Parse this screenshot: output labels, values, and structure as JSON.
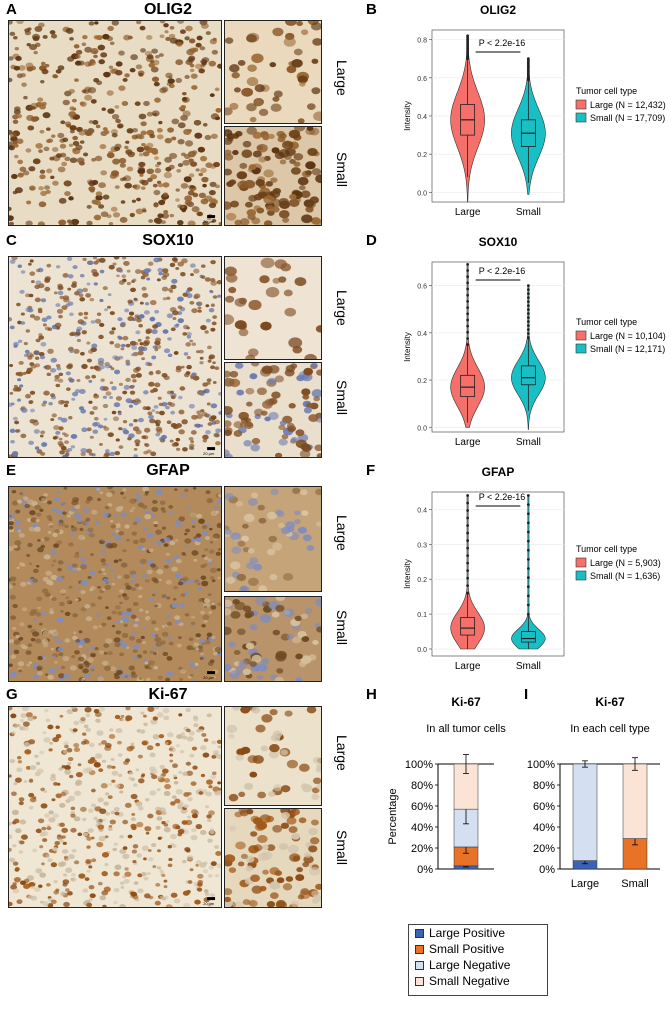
{
  "panel_letters": {
    "A": "A",
    "B": "B",
    "C": "C",
    "D": "D",
    "E": "E",
    "F": "F",
    "G": "G",
    "H": "H",
    "I": "I"
  },
  "micro_titles": {
    "olig2": "OLIG2",
    "sox10": "SOX10",
    "gfap": "GFAP",
    "ki67": "Ki-67"
  },
  "size_labels": {
    "large": "Large",
    "small": "Small"
  },
  "scale_bar": "20 μm",
  "colors": {
    "large": "#f5706a",
    "small": "#19bfc4",
    "large_pos": "#3a62b8",
    "small_pos": "#e87226",
    "large_neg": "#d4dff1",
    "small_neg": "#fbe3d6",
    "dab": "#6b3f17",
    "hema": "#7e8dbf"
  },
  "chart_data": [
    {
      "type": "violin",
      "title": "OLIG2",
      "ylabel": "Intensity",
      "categories": [
        "Large",
        "Small"
      ],
      "ylim": [
        -0.05,
        0.85
      ],
      "yticks": [
        "0.0",
        "0.2",
        "0.4",
        "0.6",
        "0.8"
      ],
      "ytick_values": [
        0,
        0.2,
        0.4,
        0.6,
        0.8
      ],
      "annotation": "P < 2.2e-16",
      "legend_title": "Tumor cell type",
      "legend": [
        "Large (N = 12,432)",
        "Small (N = 17,709)"
      ],
      "box": [
        {
          "q1": 0.3,
          "median": 0.38,
          "q3": 0.46,
          "wlo": 0.08,
          "whi": 0.7,
          "min": -0.05,
          "max": 0.82
        },
        {
          "q1": 0.24,
          "median": 0.31,
          "q3": 0.38,
          "wlo": 0.05,
          "whi": 0.59,
          "min": -0.01,
          "max": 0.7
        }
      ]
    },
    {
      "type": "violin",
      "title": "SOX10",
      "ylabel": "Intensity",
      "categories": [
        "Large",
        "Small"
      ],
      "ylim": [
        -0.02,
        0.7
      ],
      "yticks": [
        "0.0",
        "0.2",
        "0.4",
        "0.6"
      ],
      "ytick_values": [
        0,
        0.2,
        0.4,
        0.6
      ],
      "annotation": "P < 2.2e-16",
      "legend_title": "Tumor cell type",
      "legend": [
        "Large (N = 10,104)",
        "Small (N = 12,171)"
      ],
      "box": [
        {
          "q1": 0.13,
          "median": 0.17,
          "q3": 0.22,
          "wlo": 0.02,
          "whi": 0.35,
          "min": 0.0,
          "max": 0.69
        },
        {
          "q1": 0.18,
          "median": 0.21,
          "q3": 0.26,
          "wlo": 0.07,
          "whi": 0.38,
          "min": -0.01,
          "max": 0.6
        }
      ]
    },
    {
      "type": "violin",
      "title": "GFAP",
      "ylabel": "Intensity",
      "categories": [
        "Large",
        "Small"
      ],
      "ylim": [
        -0.02,
        0.45
      ],
      "yticks": [
        "0.0",
        "0.1",
        "0.2",
        "0.3",
        "0.4"
      ],
      "ytick_values": [
        0,
        0.1,
        0.2,
        0.3,
        0.4
      ],
      "annotation": "P < 2.2e-16",
      "legend_title": "Tumor cell type",
      "legend": [
        "Large (N = 5,903)",
        "Small (N = 1,636)"
      ],
      "box": [
        {
          "q1": 0.04,
          "median": 0.06,
          "q3": 0.09,
          "wlo": 0.0,
          "whi": 0.16,
          "min": 0.0,
          "max": 0.44
        },
        {
          "q1": 0.02,
          "median": 0.03,
          "q3": 0.05,
          "wlo": 0.0,
          "whi": 0.1,
          "min": 0.0,
          "max": 0.44
        }
      ]
    },
    {
      "type": "bar",
      "stacked": true,
      "title": "Ki-67",
      "subtitle": "In all tumor cells",
      "ylabel": "Percentage",
      "yticks": [
        "0%",
        "20%",
        "40%",
        "60%",
        "80%",
        "100%"
      ],
      "ytick_values": [
        0,
        20,
        40,
        60,
        80,
        100
      ],
      "categories": [
        ""
      ],
      "series": [
        {
          "name": "Large Positive",
          "values": [
            3
          ],
          "err": [
            1
          ]
        },
        {
          "name": "Small Positive",
          "values": [
            18
          ],
          "err": [
            6
          ]
        },
        {
          "name": "Large Negative",
          "values": [
            36
          ],
          "err": [
            14
          ]
        },
        {
          "name": "Small Negative",
          "values": [
            43
          ],
          "err": [
            9
          ]
        }
      ]
    },
    {
      "type": "bar",
      "stacked": true,
      "title": "Ki-67",
      "subtitle": "In each cell type",
      "yticks": [
        "0%",
        "20%",
        "40%",
        "60%",
        "80%",
        "100%"
      ],
      "ytick_values": [
        0,
        20,
        40,
        60,
        80,
        100
      ],
      "categories": [
        "Large",
        "Small"
      ],
      "series": [
        {
          "name": "Large Positive",
          "values": [
            8,
            0
          ],
          "err": [
            3,
            0
          ]
        },
        {
          "name": "Small Positive",
          "values": [
            0,
            29
          ],
          "err": [
            0,
            6
          ]
        },
        {
          "name": "Large Negative",
          "values": [
            92,
            0
          ],
          "err": [
            3,
            0
          ]
        },
        {
          "name": "Small Negative",
          "values": [
            0,
            71
          ],
          "err": [
            0,
            6
          ]
        }
      ]
    }
  ],
  "legend_bottom": [
    "Large Positive",
    "Small Positive",
    "Large Negative",
    "Small Negative"
  ]
}
